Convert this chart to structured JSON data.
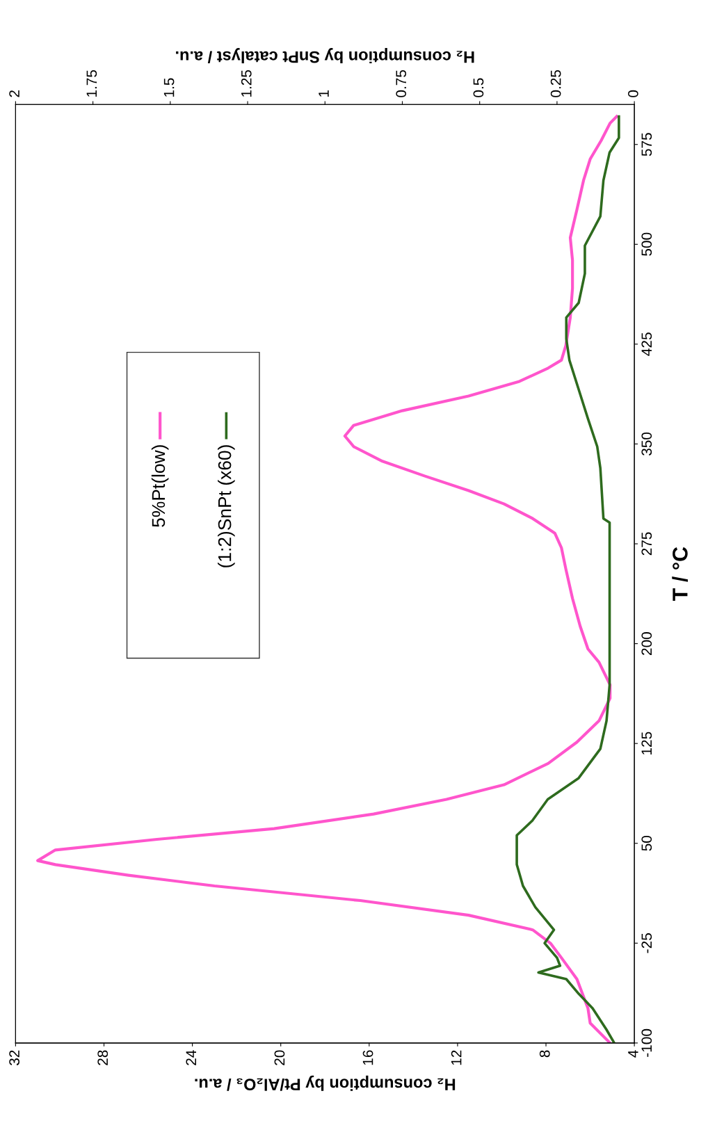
{
  "chart_data": {
    "type": "line",
    "ylabel": "T / °C",
    "xlabel": "H₂ consumption by Pt/Al₂O₃ / a.u.",
    "x2label": "H₂ consumption by SnPt catalyst / a.u.",
    "ylim": [
      -100,
      605
    ],
    "yticks": [
      -100,
      -25,
      50,
      125,
      200,
      275,
      350,
      425,
      500,
      575
    ],
    "xlim": [
      32,
      4
    ],
    "xticks": [
      4,
      8,
      12,
      16,
      20,
      24,
      28,
      32
    ],
    "x2lim": [
      2,
      0
    ],
    "x2ticks": [
      0,
      0.25,
      0.5,
      0.75,
      1,
      1.25,
      1.5,
      1.75,
      2
    ],
    "grid": false,
    "legend": "left",
    "marker": "none",
    "line_style": "solid",
    "series": [
      {
        "name": "5%Pt(low)",
        "color": "#ff55cc",
        "values": [
          -100,
          -85,
          -74,
          -63,
          -52,
          -36,
          -25,
          -15,
          -4,
          7,
          18,
          26,
          34,
          37,
          45,
          53,
          61,
          72,
          83,
          94,
          110,
          126,
          142,
          159,
          169,
          186,
          196,
          213,
          234,
          256,
          272,
          283,
          294,
          305,
          315,
          326,
          337,
          348,
          356,
          364,
          375,
          386,
          397,
          407,
          413,
          424,
          445,
          467,
          488,
          505,
          526,
          548,
          564,
          578,
          591,
          596
        ],
        "x": [
          5.1,
          6.0,
          6.1,
          6.35,
          6.6,
          7.3,
          7.8,
          8.6,
          11.5,
          16.4,
          23,
          26.9,
          30.2,
          31.0,
          30.2,
          25.6,
          20.3,
          15.8,
          12.5,
          9.9,
          7.9,
          6.6,
          5.6,
          5.1,
          5.1,
          5.6,
          6.1,
          6.45,
          6.8,
          7.1,
          7.3,
          7.6,
          8.6,
          9.9,
          11.5,
          13.5,
          15.4,
          16.7,
          17.1,
          16.7,
          14.5,
          11.5,
          9.2,
          7.9,
          7.3,
          7.1,
          6.9,
          6.8,
          6.8,
          6.9,
          6.6,
          6.3,
          6.0,
          5.5,
          5.1,
          4.8
        ]
      },
      {
        "name": "(1:2)SnPt (x60)",
        "color": "#2e6b1e",
        "axis": "x2",
        "values": [
          -100,
          -90,
          -74,
          -63,
          -52,
          -47,
          -42,
          -36,
          -25,
          -15,
          2,
          18,
          34,
          56,
          67,
          83,
          99,
          121,
          142,
          169,
          196,
          251,
          291,
          294,
          332,
          348,
          369,
          391,
          413,
          429,
          445,
          456,
          478,
          499,
          521,
          548,
          569,
          580,
          596
        ],
        "x": [
          0.065,
          0.09,
          0.135,
          0.18,
          0.22,
          0.31,
          0.24,
          0.25,
          0.29,
          0.26,
          0.32,
          0.36,
          0.38,
          0.38,
          0.33,
          0.28,
          0.18,
          0.11,
          0.09,
          0.08,
          0.08,
          0.08,
          0.08,
          0.1,
          0.11,
          0.12,
          0.15,
          0.18,
          0.21,
          0.22,
          0.22,
          0.18,
          0.16,
          0.16,
          0.11,
          0.1,
          0.08,
          0.05,
          0.05
        ]
      }
    ]
  }
}
